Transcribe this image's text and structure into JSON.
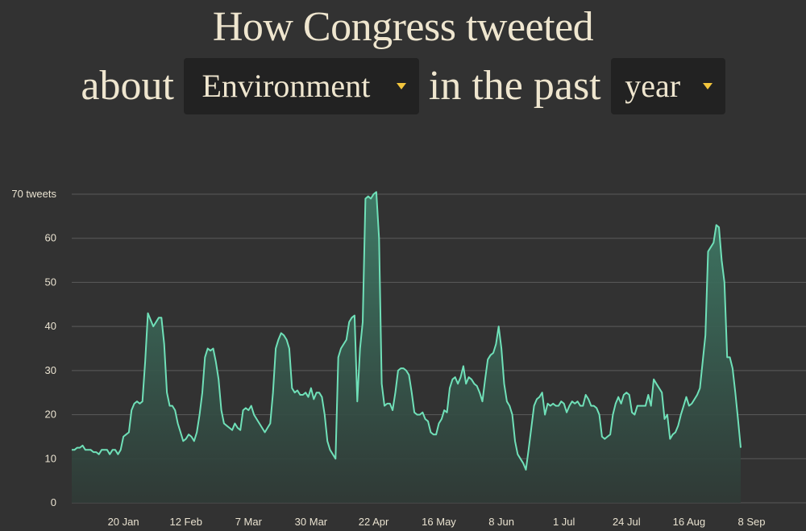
{
  "header": {
    "title": "How Congress tweeted",
    "prefix": "about",
    "middle": "in the past",
    "topic_dropdown": {
      "selected": "Environment"
    },
    "period_dropdown": {
      "selected": "year"
    }
  },
  "colors": {
    "background": "#323232",
    "line": "#6fe0b8",
    "area_top": "#3e7a66",
    "grid": "#6a6a6a",
    "caret": "#f2c53d",
    "text": "#efe6cf"
  },
  "chart_data": {
    "type": "area",
    "title": "",
    "xlabel": "",
    "ylabel": "",
    "ylim": [
      0,
      70
    ],
    "y_ticks": [
      {
        "value": 0,
        "label": "0"
      },
      {
        "value": 10,
        "label": "10"
      },
      {
        "value": 20,
        "label": "20"
      },
      {
        "value": 30,
        "label": "30"
      },
      {
        "value": 40,
        "label": "40"
      },
      {
        "value": 50,
        "label": "50"
      },
      {
        "value": 60,
        "label": "60"
      },
      {
        "value": 70,
        "label": "70 tweets"
      }
    ],
    "x_ticks": [
      {
        "day": 8,
        "label": "20 Jan"
      },
      {
        "day": 31,
        "label": "12 Feb"
      },
      {
        "day": 54,
        "label": "7 Mar"
      },
      {
        "day": 77,
        "label": "30 Mar"
      },
      {
        "day": 100,
        "label": "22 Apr"
      },
      {
        "day": 124,
        "label": "16 May"
      },
      {
        "day": 147,
        "label": "8 Jun"
      },
      {
        "day": 170,
        "label": "1 Jul"
      },
      {
        "day": 193,
        "label": "24 Jul"
      },
      {
        "day": 216,
        "label": "16 Aug"
      },
      {
        "day": 239,
        "label": "8 Sep"
      }
    ],
    "x_range": [
      -11,
      259
    ],
    "grid": true,
    "series": [
      {
        "points": [
          [
            -11,
            12
          ],
          [
            -10,
            12
          ],
          [
            -9,
            12.5
          ],
          [
            -8,
            12.5
          ],
          [
            -7,
            13
          ],
          [
            -6,
            12
          ],
          [
            -5,
            12
          ],
          [
            -4,
            12
          ],
          [
            -3,
            11.5
          ],
          [
            -2,
            11.5
          ],
          [
            -1,
            11
          ],
          [
            0,
            12
          ],
          [
            1,
            12
          ],
          [
            2,
            12
          ],
          [
            3,
            11
          ],
          [
            4,
            12
          ],
          [
            5,
            12
          ],
          [
            6,
            11
          ],
          [
            7,
            12
          ],
          [
            8,
            15
          ],
          [
            9,
            15.5
          ],
          [
            10,
            16
          ],
          [
            11,
            21
          ],
          [
            12,
            22.5
          ],
          [
            13,
            23
          ],
          [
            14,
            22.5
          ],
          [
            15,
            23
          ],
          [
            16,
            32
          ],
          [
            17,
            43
          ],
          [
            18,
            41.5
          ],
          [
            19,
            40
          ],
          [
            20,
            41
          ],
          [
            21,
            42
          ],
          [
            22,
            42
          ],
          [
            23,
            36
          ],
          [
            24,
            25
          ],
          [
            25,
            22
          ],
          [
            26,
            22
          ],
          [
            27,
            21
          ],
          [
            28,
            18
          ],
          [
            29,
            16
          ],
          [
            30,
            14
          ],
          [
            31,
            14.5
          ],
          [
            32,
            15.5
          ],
          [
            33,
            15
          ],
          [
            34,
            14
          ],
          [
            35,
            16
          ],
          [
            36,
            20
          ],
          [
            37,
            25
          ],
          [
            38,
            33
          ],
          [
            39,
            35
          ],
          [
            40,
            34.5
          ],
          [
            41,
            35
          ],
          [
            42,
            32
          ],
          [
            43,
            28
          ],
          [
            44,
            21
          ],
          [
            45,
            18
          ],
          [
            46,
            17.5
          ],
          [
            47,
            17
          ],
          [
            48,
            16.5
          ],
          [
            49,
            18
          ],
          [
            50,
            17
          ],
          [
            51,
            16.5
          ],
          [
            52,
            21
          ],
          [
            53,
            21.5
          ],
          [
            54,
            21
          ],
          [
            55,
            22
          ],
          [
            56,
            20
          ],
          [
            57,
            19
          ],
          [
            58,
            18
          ],
          [
            59,
            17
          ],
          [
            60,
            16
          ],
          [
            61,
            17
          ],
          [
            62,
            18
          ],
          [
            63,
            25
          ],
          [
            64,
            35
          ],
          [
            65,
            37
          ],
          [
            66,
            38.5
          ],
          [
            67,
            38
          ],
          [
            68,
            37
          ],
          [
            69,
            35
          ],
          [
            70,
            26
          ],
          [
            71,
            25
          ],
          [
            72,
            25.5
          ],
          [
            73,
            24.5
          ],
          [
            74,
            24.5
          ],
          [
            75,
            25
          ],
          [
            76,
            24
          ],
          [
            77,
            26
          ],
          [
            78,
            23.5
          ],
          [
            79,
            25
          ],
          [
            80,
            25
          ],
          [
            81,
            24
          ],
          [
            82,
            20
          ],
          [
            83,
            14
          ],
          [
            84,
            12
          ],
          [
            85,
            11
          ],
          [
            86,
            10
          ],
          [
            87,
            33
          ],
          [
            88,
            35
          ],
          [
            89,
            36
          ],
          [
            90,
            37
          ],
          [
            91,
            41
          ],
          [
            92,
            42
          ],
          [
            93,
            42.5
          ],
          [
            94,
            23
          ],
          [
            95,
            35
          ],
          [
            96,
            41
          ],
          [
            97,
            69
          ],
          [
            98,
            69.5
          ],
          [
            99,
            69
          ],
          [
            100,
            70
          ],
          [
            101,
            70.5
          ],
          [
            102,
            60
          ],
          [
            103,
            27
          ],
          [
            104,
            22
          ],
          [
            105,
            22.5
          ],
          [
            106,
            22.5
          ],
          [
            107,
            21
          ],
          [
            108,
            25
          ],
          [
            109,
            30
          ],
          [
            110,
            30.5
          ],
          [
            111,
            30.5
          ],
          [
            112,
            30
          ],
          [
            113,
            29
          ],
          [
            114,
            25
          ],
          [
            115,
            20.5
          ],
          [
            116,
            20
          ],
          [
            117,
            20
          ],
          [
            118,
            20.5
          ],
          [
            119,
            19
          ],
          [
            120,
            18.5
          ],
          [
            121,
            16
          ],
          [
            122,
            15.5
          ],
          [
            123,
            15.5
          ],
          [
            124,
            18
          ],
          [
            125,
            19
          ],
          [
            126,
            21
          ],
          [
            127,
            20.5
          ],
          [
            128,
            26
          ],
          [
            129,
            28
          ],
          [
            130,
            28.5
          ],
          [
            131,
            27
          ],
          [
            132,
            28.5
          ],
          [
            133,
            31
          ],
          [
            134,
            27
          ],
          [
            135,
            28.5
          ],
          [
            136,
            28
          ],
          [
            137,
            27
          ],
          [
            138,
            26.5
          ],
          [
            139,
            25
          ],
          [
            140,
            23
          ],
          [
            141,
            28
          ],
          [
            142,
            32.5
          ],
          [
            143,
            33.5
          ],
          [
            144,
            34
          ],
          [
            145,
            36
          ],
          [
            146,
            40
          ],
          [
            147,
            35
          ],
          [
            148,
            27
          ],
          [
            149,
            23
          ],
          [
            150,
            22
          ],
          [
            151,
            20
          ],
          [
            152,
            14
          ],
          [
            153,
            11
          ],
          [
            154,
            10
          ],
          [
            155,
            9
          ],
          [
            156,
            7.5
          ],
          [
            157,
            12
          ],
          [
            158,
            17
          ],
          [
            159,
            22
          ],
          [
            160,
            23.5
          ],
          [
            161,
            24
          ],
          [
            162,
            25
          ],
          [
            163,
            20
          ],
          [
            164,
            22.5
          ],
          [
            165,
            22
          ],
          [
            166,
            22.5
          ],
          [
            167,
            22
          ],
          [
            168,
            22
          ],
          [
            169,
            23
          ],
          [
            170,
            22.5
          ],
          [
            171,
            20.5
          ],
          [
            172,
            22
          ],
          [
            173,
            23
          ],
          [
            174,
            22.5
          ],
          [
            175,
            23
          ],
          [
            176,
            22
          ],
          [
            177,
            22
          ],
          [
            178,
            24.5
          ],
          [
            179,
            23.5
          ],
          [
            180,
            22
          ],
          [
            181,
            22
          ],
          [
            182,
            21.5
          ],
          [
            183,
            20
          ],
          [
            184,
            15
          ],
          [
            185,
            14.5
          ],
          [
            186,
            15
          ],
          [
            187,
            15.5
          ],
          [
            188,
            20
          ],
          [
            189,
            22.5
          ],
          [
            190,
            24
          ],
          [
            191,
            22.5
          ],
          [
            192,
            24.5
          ],
          [
            193,
            25
          ],
          [
            194,
            24.5
          ],
          [
            195,
            20.5
          ],
          [
            196,
            20
          ],
          [
            197,
            22
          ],
          [
            198,
            22
          ],
          [
            199,
            22
          ],
          [
            200,
            22
          ],
          [
            201,
            24.5
          ],
          [
            202,
            22
          ],
          [
            203,
            28
          ],
          [
            204,
            27
          ],
          [
            205,
            26
          ],
          [
            206,
            25
          ],
          [
            207,
            19
          ],
          [
            208,
            20
          ],
          [
            209,
            14.5
          ],
          [
            210,
            15.5
          ],
          [
            211,
            16
          ],
          [
            212,
            17.5
          ],
          [
            213,
            20
          ],
          [
            214,
            22
          ],
          [
            215,
            24
          ],
          [
            216,
            22
          ],
          [
            217,
            22.5
          ],
          [
            218,
            23.5
          ],
          [
            219,
            24.5
          ],
          [
            220,
            26
          ],
          [
            221,
            32
          ],
          [
            222,
            38
          ],
          [
            223,
            57
          ],
          [
            224,
            58
          ],
          [
            225,
            59
          ],
          [
            226,
            63
          ],
          [
            227,
            62.5
          ],
          [
            228,
            55
          ],
          [
            229,
            50
          ],
          [
            230,
            33
          ],
          [
            231,
            33
          ],
          [
            232,
            30.5
          ],
          [
            233,
            25
          ],
          [
            234,
            19
          ],
          [
            235,
            12.5
          ]
        ]
      }
    ]
  }
}
